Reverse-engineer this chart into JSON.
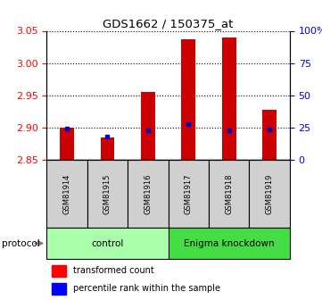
{
  "title": "GDS1662 / 150375_at",
  "samples": [
    "GSM81914",
    "GSM81915",
    "GSM81916",
    "GSM81917",
    "GSM81918",
    "GSM81919"
  ],
  "red_values": [
    2.9,
    2.885,
    2.955,
    3.037,
    3.04,
    2.928
  ],
  "blue_values": [
    2.899,
    2.887,
    2.896,
    2.906,
    2.896,
    2.897
  ],
  "ymin": 2.85,
  "ymax": 3.05,
  "yticks_left": [
    2.85,
    2.9,
    2.95,
    3.0,
    3.05
  ],
  "yticks_right": [
    0,
    25,
    50,
    75,
    100
  ],
  "bar_color": "#CC0000",
  "blue_marker_color": "#0000CC",
  "bar_width": 0.35,
  "ctrl_color": "#AAFFAA",
  "enigma_color": "#44DD44",
  "sample_box_color": "#D0D0D0"
}
